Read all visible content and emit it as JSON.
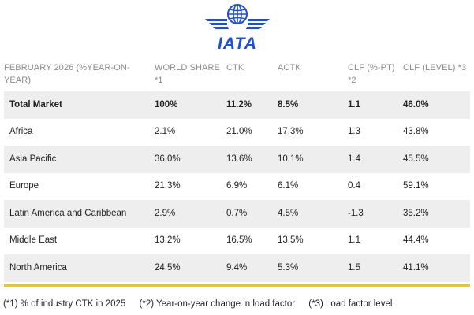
{
  "logo": {
    "text": "IATA",
    "brand_color": "#1e4fd6"
  },
  "table": {
    "headers": [
      "FEBRUARY 2026 (%YEAR-ON-YEAR)",
      "WORLD SHARE *1",
      "CTK",
      "ACTK",
      "CLF (%-PT) *2",
      "CLF (LEVEL) *3"
    ],
    "rows": [
      [
        "Total Market",
        "100%",
        "11.2%",
        "8.5%",
        "1.1",
        "46.0%"
      ],
      [
        "Africa",
        "2.1%",
        "21.0%",
        "17.3%",
        "1.3",
        "43.8%"
      ],
      [
        "Asia Pacific",
        "36.0%",
        "13.6%",
        "10.1%",
        "1.4",
        "45.5%"
      ],
      [
        "Europe",
        "21.3%",
        "6.9%",
        "6.1%",
        "0.4",
        "59.1%"
      ],
      [
        "Latin America and Caribbean",
        "2.9%",
        "0.7%",
        "4.5%",
        "-1.3",
        "35.2%"
      ],
      [
        "Middle East",
        "13.2%",
        "16.5%",
        "13.5%",
        "1.1",
        "44.4%"
      ],
      [
        "North America",
        "24.5%",
        "9.4%",
        "5.3%",
        "1.5",
        "41.1%"
      ]
    ]
  },
  "footnotes": [
    "(*1) % of industry CTK in 2025",
    "(*2) Year-on-year change in load factor",
    "(*3) Load factor level"
  ],
  "colors": {
    "accent_rule": "#f3c414",
    "row_shade": "#eeeeee",
    "header_text": "#8a8a8a"
  }
}
